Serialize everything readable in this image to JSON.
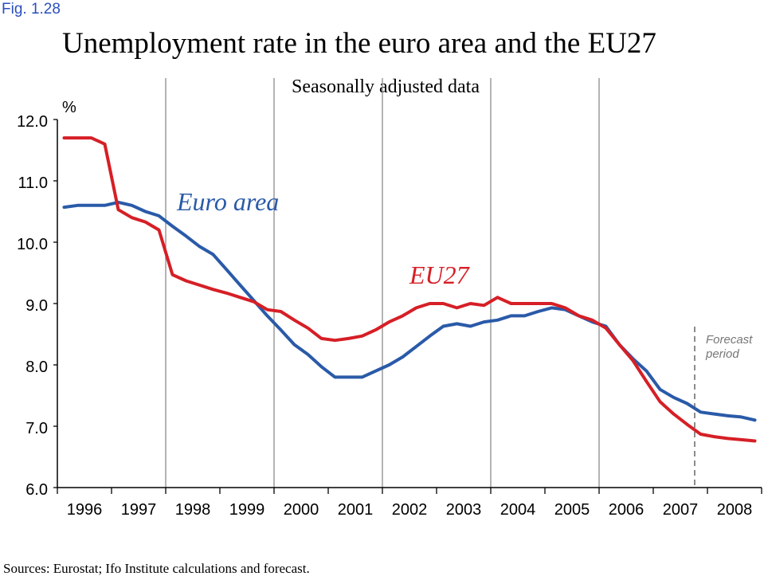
{
  "figure_label": "Fig. 1.28",
  "sources": "Sources: Eurostat; Ifo Institute calculations and forecast.",
  "forecast_label": [
    "Forecast",
    "period"
  ],
  "chart_data": {
    "type": "line",
    "title": "Unemployment rate in the euro area and the EU27",
    "subtitle": "Seasonally adjusted data",
    "ylabel": "%",
    "xlabel": "",
    "ylim": [
      6.0,
      12.0
    ],
    "xlim": [
      1996.0,
      2009.0
    ],
    "yticks": [
      "6.0",
      "7.0",
      "8.0",
      "9.0",
      "10.0",
      "11.0",
      "12.0"
    ],
    "xticks": [
      "1996",
      "1997",
      "1998",
      "1999",
      "2000",
      "2001",
      "2002",
      "2003",
      "2004",
      "2005",
      "2006",
      "2007",
      "2008"
    ],
    "forecast_start": 2007.75,
    "grid": "vertical lines every two years, from 1997/98 to 2005/06",
    "legend": "inline labels",
    "colors": {
      "euro_area": "#2a5aa8",
      "eu27": "#d61f26",
      "grid": "#8c8c8c"
    },
    "series": [
      {
        "name": "Euro area",
        "color": "#2a5aa8",
        "x": [
          1996.0,
          1996.25,
          1996.5,
          1996.75,
          1997.0,
          1997.25,
          1997.5,
          1997.75,
          1998.0,
          1998.25,
          1998.5,
          1998.75,
          1999.0,
          1999.25,
          1999.5,
          1999.75,
          2000.0,
          2000.25,
          2000.5,
          2000.75,
          2001.0,
          2001.25,
          2001.5,
          2001.75,
          2002.0,
          2002.25,
          2002.5,
          2002.75,
          2003.0,
          2003.25,
          2003.5,
          2003.75,
          2004.0,
          2004.25,
          2004.5,
          2004.75,
          2005.0,
          2005.25,
          2005.5,
          2005.75,
          2006.0,
          2006.25,
          2006.5,
          2006.75,
          2007.0,
          2007.25,
          2007.5,
          2007.75,
          2008.0,
          2008.25,
          2008.5,
          2008.75
        ],
        "y": [
          10.57,
          10.6,
          10.6,
          10.6,
          10.65,
          10.6,
          10.5,
          10.43,
          10.26,
          10.1,
          9.93,
          9.8,
          9.55,
          9.3,
          9.05,
          8.8,
          8.57,
          8.33,
          8.17,
          7.97,
          7.8,
          7.8,
          7.8,
          7.9,
          8.0,
          8.13,
          8.3,
          8.47,
          8.63,
          8.67,
          8.63,
          8.7,
          8.73,
          8.8,
          8.8,
          8.87,
          8.93,
          8.9,
          8.8,
          8.7,
          8.63,
          8.33,
          8.1,
          7.9,
          7.6,
          7.47,
          7.37,
          7.23,
          7.2,
          7.17,
          7.15,
          7.1
        ]
      },
      {
        "name": "EU27",
        "color": "#d61f26",
        "x": [
          1996.0,
          1996.25,
          1996.5,
          1996.75,
          1997.0,
          1997.25,
          1997.5,
          1997.75,
          1998.0,
          1998.25,
          1998.5,
          1998.75,
          1999.0,
          1999.25,
          1999.5,
          1999.75,
          2000.0,
          2000.25,
          2000.5,
          2000.75,
          2001.0,
          2001.25,
          2001.5,
          2001.75,
          2002.0,
          2002.25,
          2002.5,
          2002.75,
          2003.0,
          2003.25,
          2003.5,
          2003.75,
          2004.0,
          2004.25,
          2004.5,
          2004.75,
          2005.0,
          2005.25,
          2005.5,
          2005.75,
          2006.0,
          2006.25,
          2006.5,
          2006.75,
          2007.0,
          2007.25,
          2007.5,
          2007.75,
          2008.0,
          2008.25,
          2008.5,
          2008.75
        ],
        "y": [
          11.7,
          11.7,
          11.7,
          11.6,
          10.53,
          10.4,
          10.33,
          10.2,
          9.47,
          9.37,
          9.3,
          9.23,
          9.17,
          9.1,
          9.03,
          8.9,
          8.87,
          8.73,
          8.6,
          8.43,
          8.4,
          8.43,
          8.47,
          8.57,
          8.7,
          8.8,
          8.93,
          9.0,
          9.0,
          8.93,
          9.0,
          8.97,
          9.1,
          9.0,
          9.0,
          9.0,
          9.0,
          8.93,
          8.8,
          8.73,
          8.6,
          8.33,
          8.07,
          7.73,
          7.4,
          7.2,
          7.03,
          6.87,
          6.83,
          6.8,
          6.78,
          6.76
        ]
      }
    ]
  }
}
